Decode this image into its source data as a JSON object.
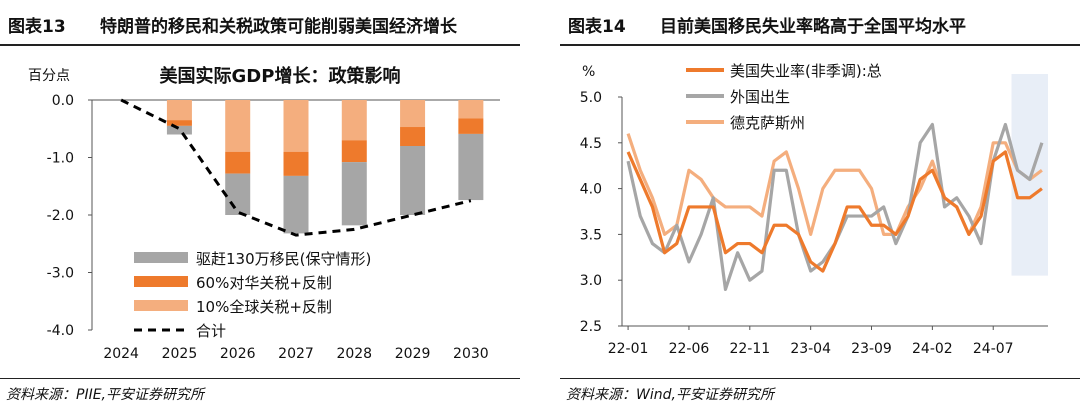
{
  "left": {
    "figure_num": "图表13",
    "figure_title": "特朗普的移民和关税政策可能削弱美国经济增长",
    "source": "资料来源：PIIE,平安证券研究所"
  },
  "right": {
    "figure_num": "图表14",
    "figure_title": "目前美国移民失业率略高于全国平均水平",
    "source": "资料来源：Wind,平安证券研究所"
  },
  "chart_data": [
    {
      "type": "bar",
      "title": "美国实际GDP增长：政策影响",
      "ylabel": "百分点",
      "ylim": [
        -4.0,
        0.0
      ],
      "yticks": [
        "0.0",
        "-1.0",
        "-2.0",
        "-3.0",
        "-4.0"
      ],
      "ytick_values": [
        0.0,
        -1.0,
        -2.0,
        -3.0,
        -4.0
      ],
      "categories": [
        "2024",
        "2025",
        "2026",
        "2027",
        "2028",
        "2029",
        "2030"
      ],
      "stacked": true,
      "series": [
        {
          "name": "10%全球关税+反制",
          "color": "#F4AE7E",
          "values": [
            0.0,
            -0.35,
            -0.9,
            -0.9,
            -0.7,
            -0.47,
            -0.32
          ]
        },
        {
          "name": "60%对华关税+反制",
          "color": "#EE7A2C",
          "values": [
            0.0,
            -0.1,
            -0.38,
            -0.42,
            -0.38,
            -0.33,
            -0.27
          ]
        },
        {
          "name": "驱赶130万移民(保守情形)",
          "color": "#A6A6A6",
          "values": [
            0.0,
            -0.15,
            -0.72,
            -1.0,
            -1.1,
            -1.2,
            -1.15
          ]
        }
      ],
      "line": {
        "name": "合计",
        "style": "dashed",
        "color": "#000000",
        "x": [
          2024,
          2025,
          2026,
          2027,
          2028,
          2029,
          2030
        ],
        "values": [
          0.0,
          -0.5,
          -1.95,
          -2.35,
          -2.25,
          -2.0,
          -1.75
        ]
      },
      "legend_order": [
        "驱赶130万移民(保守情形)",
        "60%对华关税+反制",
        "10%全球关税+反制",
        "合计"
      ],
      "legend": "bottom-right"
    },
    {
      "type": "line",
      "ylabel": "%",
      "ylim": [
        2.5,
        5.0
      ],
      "yticks": [
        "5.0",
        "4.5",
        "4.0",
        "3.5",
        "3.0",
        "2.5"
      ],
      "ytick_values": [
        5.0,
        4.5,
        4.0,
        3.5,
        3.0,
        2.5
      ],
      "xtick_labels": [
        "22-01",
        "22-06",
        "22-11",
        "23-04",
        "23-09",
        "24-02",
        "24-07"
      ],
      "xtick_index": [
        0,
        5,
        10,
        15,
        20,
        25,
        30
      ],
      "n_points": 35,
      "highlight_from_index": 32,
      "highlight_color": "#E8EEF7",
      "series": [
        {
          "name": "美国失业率(非季调):总",
          "color": "#EE7A2C",
          "values": [
            4.4,
            4.1,
            3.8,
            3.3,
            3.4,
            3.8,
            3.8,
            3.8,
            3.3,
            3.4,
            3.4,
            3.3,
            3.6,
            3.6,
            3.5,
            3.2,
            3.1,
            3.4,
            3.8,
            3.8,
            3.6,
            3.6,
            3.5,
            3.7,
            4.1,
            4.2,
            3.9,
            3.8,
            3.5,
            3.7,
            4.3,
            4.4,
            3.9,
            3.9,
            4.0
          ]
        },
        {
          "name": "外国出生",
          "color": "#A6A6A6",
          "values": [
            4.3,
            3.7,
            3.4,
            3.3,
            3.6,
            3.2,
            3.5,
            3.9,
            2.9,
            3.3,
            3.0,
            3.1,
            4.2,
            4.2,
            3.5,
            3.1,
            3.2,
            3.4,
            3.7,
            3.7,
            3.7,
            3.8,
            3.4,
            3.7,
            4.5,
            4.7,
            3.8,
            3.9,
            3.7,
            3.4,
            4.3,
            4.7,
            4.2,
            4.1,
            4.5
          ]
        },
        {
          "name": "德克萨斯州",
          "color": "#F4AE7E",
          "values": [
            4.6,
            4.2,
            3.9,
            3.5,
            3.6,
            4.2,
            4.1,
            3.9,
            3.8,
            3.8,
            3.8,
            3.7,
            4.3,
            4.4,
            4.0,
            3.5,
            4.0,
            4.2,
            4.2,
            4.2,
            4.0,
            3.5,
            3.5,
            3.8,
            4.0,
            4.3,
            3.9,
            3.8,
            3.5,
            3.8,
            4.5,
            4.5,
            4.2,
            4.1,
            4.2
          ]
        }
      ],
      "legend": "top-left"
    }
  ]
}
